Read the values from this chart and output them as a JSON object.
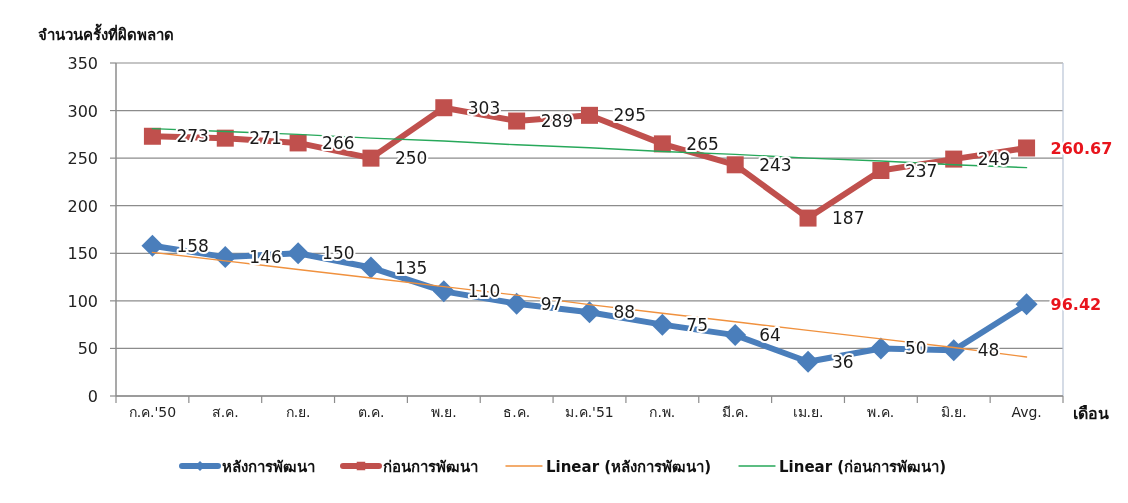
{
  "chart_data": {
    "type": "line",
    "ylabel": "จำนวนครั้งที่ผิดพลาด",
    "xlabel": "เดือน",
    "categories": [
      "ก.ค.'50",
      "ส.ค.",
      "ก.ย.",
      "ต.ค.",
      "พ.ย.",
      "ธ.ค.",
      "ม.ค.'51",
      "ก.พ.",
      "มี.ค.",
      "เม.ย.",
      "พ.ค.",
      "มิ.ย.",
      "Avg."
    ],
    "ylim": [
      0,
      350
    ],
    "yticks": [
      0,
      50,
      100,
      150,
      200,
      250,
      300,
      350
    ],
    "grid": "y",
    "legend": "bottom",
    "series": [
      {
        "name": "หลังการพัฒนา",
        "color": "#4a7ebb",
        "marker": "diamond",
        "values": [
          158,
          146,
          150,
          135,
          110,
          97,
          88,
          75,
          64,
          36,
          50,
          48,
          96.42
        ],
        "value_labels": [
          "158",
          "146",
          "150",
          "135",
          "110",
          "97",
          "88",
          "75",
          "64",
          "36",
          "50",
          "48",
          "96.42"
        ]
      },
      {
        "name": "ก่อนการพัฒนา",
        "color": "#c0504d",
        "marker": "square",
        "values": [
          273,
          271,
          266,
          250,
          303,
          289,
          295,
          265,
          243,
          187,
          237,
          249,
          260.67
        ],
        "value_labels": [
          "273",
          "271",
          "266",
          "250",
          "303",
          "289",
          "295",
          "265",
          "243",
          "187",
          "237",
          "249",
          "260.67"
        ]
      },
      {
        "name": "Linear (หลังการพัฒนา)",
        "color": "#f0913e",
        "marker": "none",
        "values": [
          151,
          142,
          133,
          124,
          115,
          106,
          96,
          87,
          78,
          69,
          60,
          51,
          41
        ]
      },
      {
        "name": "Linear (ก่อนการพัฒนา)",
        "color": "#27a85a",
        "marker": "none",
        "values": [
          281,
          278,
          275,
          271,
          268,
          264,
          261,
          257,
          254,
          250,
          247,
          243,
          240
        ]
      }
    ]
  }
}
